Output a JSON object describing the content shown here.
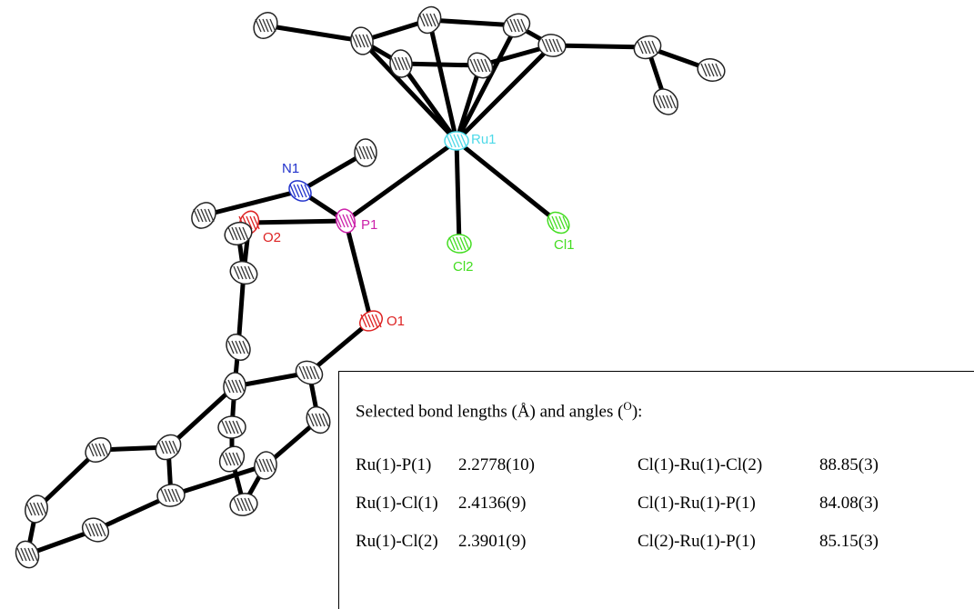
{
  "atoms": [
    {
      "label": "Ru1"
    },
    {
      "label": "N1"
    },
    {
      "label": "P1"
    },
    {
      "label": "O2"
    },
    {
      "label": "O1"
    },
    {
      "label": "Cl2"
    },
    {
      "label": "Cl1"
    }
  ],
  "table": {
    "caption": {
      "text": "Selected bond lengths (Å) and angles (",
      "superscript": "O",
      "end": "):"
    },
    "rows": [
      [
        "Ru(1)-P(1)",
        "2.2778(10)",
        "Cl(1)-Ru(1)-Cl(2)",
        "88.85(3)"
      ],
      [
        "Ru(1)-Cl(1)",
        "2.4136(9)",
        "Cl(1)-Ru(1)-P(1)",
        "84.08(3)"
      ],
      [
        "Ru(1)-Cl(2)",
        "2.3901(9)",
        "Cl(2)-Ru(1)-P(1)",
        "85.15(3)"
      ]
    ]
  }
}
